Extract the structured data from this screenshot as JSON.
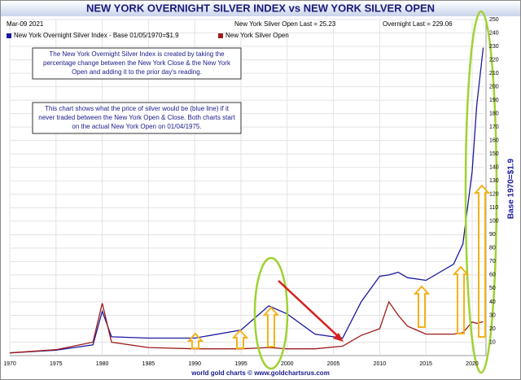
{
  "chart_data": {
    "type": "line",
    "title": "NEW YORK OVERNIGHT SILVER INDEX vs NEW YORK SILVER OPEN",
    "date": "Mar-09  2021",
    "open_last": "New York Silver Open Last = 25.23",
    "overnight_last": "Overnight Last = 229.06",
    "y_label": "Base 1970=$1.9",
    "footer": "world gold charts © www.goldchartsrus.com",
    "notes": [
      [
        "The New York Overnight Silver Index is created by taking the",
        "percentage change between the New York Close & the New York",
        "Open and adding it to the prior day's reading."
      ],
      [
        "This chart shows what the price of silver would be (blue line) if it",
        "never traded between the New York Open & Close. Both charts start",
        "on the actual New York Open on 01/04/1975."
      ]
    ],
    "x": [
      1970,
      1975,
      1979,
      1980,
      1981,
      1985,
      1990,
      1995,
      1998,
      2000,
      2003,
      2006,
      2008,
      2010,
      2011,
      2012,
      2013,
      2015,
      2018,
      2019,
      2020,
      2020.5,
      2021.2
    ],
    "series": [
      {
        "name": "New York Overnight Silver Index - Base 01/05/1970=$1.9",
        "color": "#1a1aa0",
        "values": [
          2,
          4,
          8,
          33,
          14,
          13,
          13,
          19,
          37,
          31,
          16,
          13,
          40,
          59,
          60,
          62,
          58,
          56,
          68,
          83,
          137,
          186,
          229.06
        ]
      },
      {
        "name": "New York Silver Open",
        "color": "#a01a1a",
        "values": [
          2,
          4.4,
          10,
          39,
          10,
          6,
          5,
          5,
          6,
          5,
          5,
          7,
          15,
          20,
          40,
          30,
          22,
          16,
          16,
          17,
          25,
          24,
          25.23
        ]
      }
    ],
    "xlim": [
      1970,
      2021.5
    ],
    "xticks": [
      1970,
      1975,
      1980,
      1985,
      1990,
      1995,
      2000,
      2005,
      2010,
      2015,
      2020
    ],
    "ylim": [
      0,
      250
    ],
    "yticks": [
      10,
      20,
      30,
      40,
      50,
      60,
      70,
      80,
      90,
      100,
      110,
      120,
      130,
      140,
      150,
      160,
      170,
      180,
      190,
      200,
      210,
      220,
      230,
      240,
      250
    ],
    "grid": true
  }
}
